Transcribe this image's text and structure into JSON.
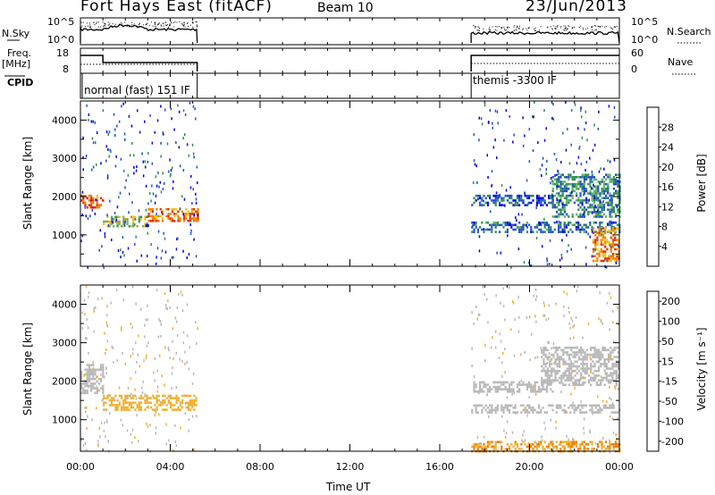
{
  "header": {
    "station": "Fort Hays East (fitACF)",
    "beam": "Beam 10",
    "date": "23/Jun/2013"
  },
  "strip_labels": {
    "nsky": "N.Sky",
    "freq_line1": "Freq.",
    "freq_line2": "[MHz]",
    "cpid": "CPID",
    "nsearch": "N.Search",
    "nave": "Nave"
  },
  "strip_ticks": {
    "nsky_top": "10^5",
    "nsky_bottom": "10^0",
    "nsearch_top": "10^5",
    "nsearch_bottom": "10^0",
    "freq_top": "18",
    "freq_bottom": "8",
    "nave_top": "60",
    "nave_bottom": "0"
  },
  "cpid_modes": [
    {
      "label": "normal (fast) 151 IF",
      "start_hour": 0,
      "end_hour": 5.2
    },
    {
      "label": "themis -3300 IF",
      "start_hour": 17.4,
      "end_hour": 24
    }
  ],
  "panels": {
    "power_ylabel": "Slant Range [km]",
    "velocity_ylabel": "Slant Range [km]",
    "power_colorbar_label": "Power [dB]",
    "velocity_colorbar_label": "Velocity [m s⁻¹]",
    "xlabel": "Time UT"
  },
  "chart_data": {
    "type": "heatmap",
    "x_axis": {
      "label": "Time UT",
      "range_hours": [
        0,
        24
      ],
      "ticks": [
        "00:00",
        "04:00",
        "08:00",
        "12:00",
        "16:00",
        "20:00",
        "00:00"
      ]
    },
    "y_axis": {
      "label": "Slant Range [km]",
      "range_km": [
        180,
        4500
      ],
      "ticks": [
        "1000",
        "2000",
        "3000",
        "4000"
      ]
    },
    "data_coverage_hours": [
      [
        0,
        5.2
      ],
      [
        17.4,
        24
      ]
    ],
    "power_colorbar": {
      "label": "Power [dB]",
      "ticks": [
        "4",
        "8",
        "12",
        "16",
        "20",
        "24",
        "28"
      ],
      "colors": [
        "#0000dd",
        "#2050c8",
        "#2e8b57",
        "#63b563",
        "#f0c020",
        "#f08000",
        "#e03000",
        "#dd0000"
      ]
    },
    "velocity_colorbar": {
      "label": "Velocity [m s⁻¹]",
      "ticks": [
        "200",
        "100",
        "50",
        "15",
        "-15",
        "-50",
        "-100",
        "-200"
      ],
      "colors": [
        "#2030c0",
        "#2e8b57",
        "#50c050",
        "#b8b8b8",
        "#f0b030",
        "#f08000",
        "#e05000",
        "#dd0000"
      ]
    },
    "power_features": [
      {
        "t0": 0.0,
        "t1": 1.0,
        "range": [
          1700,
          2050
        ],
        "power_db": 24
      },
      {
        "t0": 1.0,
        "t1": 3.0,
        "range": [
          1250,
          1500
        ],
        "power_db": 16
      },
      {
        "t0": 3.0,
        "t1": 5.2,
        "range": [
          1350,
          1700
        ],
        "power_db": 22
      },
      {
        "t0": 17.4,
        "t1": 24.0,
        "range": [
          1100,
          1350
        ],
        "power_db": 8
      },
      {
        "t0": 17.4,
        "t1": 21.0,
        "range": [
          1800,
          2050
        ],
        "power_db": 6
      },
      {
        "t0": 21.0,
        "t1": 24.0,
        "range": [
          1500,
          2600
        ],
        "power_db": 10
      },
      {
        "t0": 22.8,
        "t1": 24.0,
        "range": [
          300,
          1200
        ],
        "power_db": 22
      }
    ],
    "velocity_features": [
      {
        "t0": 0.0,
        "t1": 1.0,
        "range": [
          1700,
          2450
        ],
        "velocity": 0
      },
      {
        "t0": 1.0,
        "t1": 5.2,
        "range": [
          1250,
          1650
        ],
        "velocity": -30
      },
      {
        "t0": 17.4,
        "t1": 24.0,
        "range": [
          1200,
          1400
        ],
        "velocity": 0
      },
      {
        "t0": 17.4,
        "t1": 21.0,
        "range": [
          1750,
          2000
        ],
        "velocity": 0
      },
      {
        "t0": 20.5,
        "t1": 24.0,
        "range": [
          1900,
          2900
        ],
        "velocity": 10
      },
      {
        "t0": 17.4,
        "t1": 24.0,
        "range": [
          180,
          450
        ],
        "velocity": -40
      }
    ]
  }
}
